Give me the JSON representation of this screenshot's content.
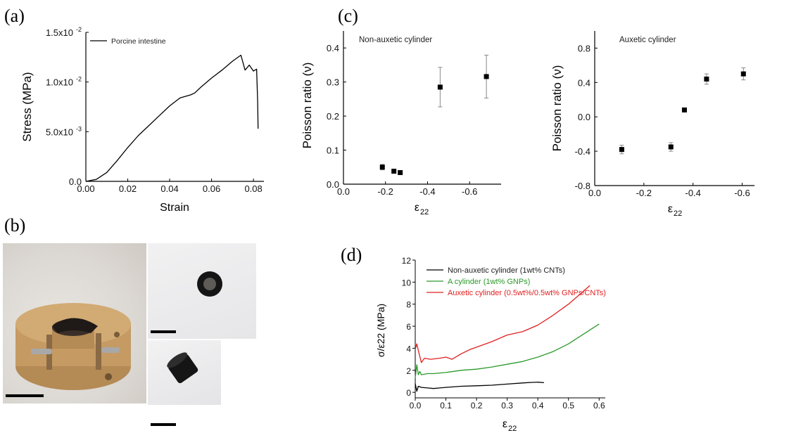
{
  "panels": {
    "a": "(a)",
    "b": "(b)",
    "c": "(c)",
    "d": "(d)"
  },
  "chart_data": [
    {
      "id": "a",
      "type": "line",
      "xlabel": "Strain",
      "ylabel": "Stress (MPa)",
      "xlim": [
        0,
        0.085
      ],
      "ylim": [
        0,
        0.015
      ],
      "xticks": [
        0,
        0.02,
        0.04,
        0.06,
        0.08
      ],
      "xtick_labels": [
        "0.00",
        "0.02",
        "0.04",
        "0.06",
        "0.08"
      ],
      "yticks": [
        0,
        0.005,
        0.01,
        0.015
      ],
      "ytick_labels": [
        "0.0",
        "5.0x10",
        "1.0x10",
        "1.5x10"
      ],
      "ytick_exps": [
        "",
        "-3",
        "-2",
        "-2"
      ],
      "series": [
        {
          "name": "Porcine intestine",
          "color": "#000000",
          "x": [
            0.0,
            0.005,
            0.01,
            0.015,
            0.02,
            0.025,
            0.03,
            0.035,
            0.04,
            0.045,
            0.05,
            0.052,
            0.055,
            0.06,
            0.065,
            0.07,
            0.074,
            0.076,
            0.078,
            0.08,
            0.0815,
            0.082,
            0.0822
          ],
          "y": [
            0.0,
            0.0002,
            0.0009,
            0.0021,
            0.0034,
            0.0046,
            0.0056,
            0.0066,
            0.0076,
            0.0084,
            0.0087,
            0.0089,
            0.0095,
            0.0104,
            0.0112,
            0.0121,
            0.0127,
            0.0112,
            0.0117,
            0.0111,
            0.0113,
            0.008,
            0.0053
          ]
        }
      ]
    },
    {
      "id": "c1",
      "type": "scatter",
      "title": "Non-auxetic cylinder",
      "xlabel": "ε22",
      "ylabel": "Poisson ratio (ν)",
      "xlim": [
        0,
        -0.75
      ],
      "ylim": [
        0,
        0.45
      ],
      "xticks": [
        0,
        -0.2,
        -0.4,
        -0.6
      ],
      "xtick_labels": [
        "0.0",
        "-0.2",
        "-0.4",
        "-0.6"
      ],
      "yticks": [
        0,
        0.1,
        0.2,
        0.3,
        0.4
      ],
      "ytick_labels": [
        "0.0",
        "0.1",
        "0.2",
        "0.3",
        "0.4"
      ],
      "points": [
        {
          "x": -0.185,
          "y": 0.05,
          "err": 0.008
        },
        {
          "x": -0.24,
          "y": 0.038,
          "err": 0.004
        },
        {
          "x": -0.27,
          "y": 0.034,
          "err": 0.004
        },
        {
          "x": -0.46,
          "y": 0.285,
          "err": 0.058
        },
        {
          "x": -0.68,
          "y": 0.316,
          "err": 0.063
        }
      ]
    },
    {
      "id": "c2",
      "type": "scatter",
      "title": "Auxetic cylinder",
      "xlabel": "ε22",
      "ylabel": "Poisson ratio (ν)",
      "xlim": [
        0,
        -0.65
      ],
      "ylim": [
        -0.8,
        1.0
      ],
      "xticks": [
        0,
        -0.2,
        -0.4,
        -0.6
      ],
      "xtick_labels": [
        "0.0",
        "-0.2",
        "-0.4",
        "-0.6"
      ],
      "yticks": [
        -0.8,
        -0.4,
        0,
        0.4,
        0.8
      ],
      "ytick_labels": [
        "-0.8",
        "-0.4",
        "0.0",
        "0.4",
        "0.8"
      ],
      "points": [
        {
          "x": -0.11,
          "y": -0.38,
          "err": 0.05
        },
        {
          "x": -0.31,
          "y": -0.35,
          "err": 0.05
        },
        {
          "x": -0.365,
          "y": 0.08,
          "err": 0.0
        },
        {
          "x": -0.455,
          "y": 0.44,
          "err": 0.06
        },
        {
          "x": -0.605,
          "y": 0.5,
          "err": 0.07
        }
      ]
    },
    {
      "id": "d",
      "type": "line",
      "xlabel": "ε22",
      "ylabel": "σ/ε22 (MPa)",
      "xlim": [
        0,
        0.62
      ],
      "ylim": [
        -0.5,
        12
      ],
      "xticks": [
        0,
        0.1,
        0.2,
        0.3,
        0.4,
        0.5,
        0.6
      ],
      "xtick_labels": [
        "0.0",
        "0.1",
        "0.2",
        "0.3",
        "0.4",
        "0.5",
        "0.6"
      ],
      "yticks": [
        0,
        2,
        4,
        6,
        8,
        10,
        12
      ],
      "ytick_labels": [
        "0",
        "2",
        "4",
        "6",
        "8",
        "10",
        "12"
      ],
      "series": [
        {
          "name": "Non-auxetic cylinder (1wt% CNTs)",
          "color": "#000000",
          "x": [
            0,
            0.005,
            0.01,
            0.02,
            0.04,
            0.06,
            0.08,
            0.1,
            0.15,
            0.2,
            0.25,
            0.3,
            0.35,
            0.38,
            0.4,
            0.42
          ],
          "y": [
            0.8,
            0.1,
            0.55,
            0.45,
            0.4,
            0.35,
            0.4,
            0.45,
            0.55,
            0.6,
            0.65,
            0.75,
            0.85,
            0.9,
            0.92,
            0.88
          ]
        },
        {
          "name": "A cylinder (1wt% GNPs)",
          "color": "#2a9a2a",
          "x": [
            0,
            0.005,
            0.01,
            0.015,
            0.02,
            0.04,
            0.06,
            0.1,
            0.15,
            0.2,
            0.25,
            0.3,
            0.35,
            0.4,
            0.45,
            0.5,
            0.55,
            0.6
          ],
          "y": [
            1.3,
            2.5,
            1.6,
            1.9,
            1.6,
            1.7,
            1.7,
            1.8,
            2.0,
            2.1,
            2.3,
            2.55,
            2.8,
            3.2,
            3.7,
            4.4,
            5.3,
            6.2
          ]
        },
        {
          "name": "Auxetic cylinder (0.5wt%/0.5wt% GNPs/CNTs)",
          "color": "#e02020",
          "x": [
            0,
            0.005,
            0.01,
            0.02,
            0.03,
            0.05,
            0.08,
            0.1,
            0.12,
            0.15,
            0.18,
            0.2,
            0.25,
            0.3,
            0.35,
            0.4,
            0.45,
            0.5,
            0.55,
            0.57
          ],
          "y": [
            3.9,
            4.4,
            3.8,
            2.7,
            3.1,
            3.0,
            3.1,
            3.2,
            3.0,
            3.5,
            3.9,
            4.1,
            4.6,
            5.2,
            5.5,
            6.1,
            7.0,
            8.0,
            9.2,
            9.7
          ]
        }
      ]
    }
  ]
}
